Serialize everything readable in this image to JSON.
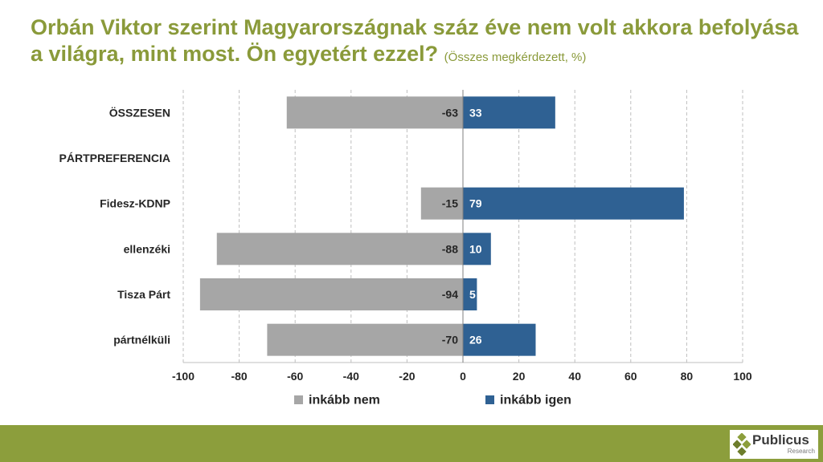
{
  "title": {
    "main": "Orbán Viktor szerint Magyarországnak száz éve nem volt akkora befolyása a világra, mint most. Ön egyetért ezzel?",
    "subtitle": "(Összes megkérdezett, %)"
  },
  "chart_data": {
    "type": "bar",
    "orientation": "horizontal-diverging",
    "categories": [
      "ÖSSZESEN",
      "PÁRTPREFERENCIA",
      "Fidesz-KDNP",
      "ellenzéki",
      "Tisza Párt",
      "pártnélküli"
    ],
    "series": [
      {
        "name": "inkább nem",
        "values": [
          -63,
          null,
          -15,
          -88,
          -94,
          -70
        ],
        "color": "#a6a6a6"
      },
      {
        "name": "inkább igen",
        "values": [
          33,
          null,
          79,
          10,
          5,
          26
        ],
        "color": "#2f6193"
      }
    ],
    "xlim": [
      -100,
      100
    ],
    "xticks": [
      -100,
      -80,
      -60,
      -40,
      -20,
      0,
      20,
      40,
      60,
      80,
      100
    ],
    "grid": true,
    "legend_position": "bottom"
  },
  "logo": {
    "name": "Publicus",
    "sub": "Research"
  }
}
